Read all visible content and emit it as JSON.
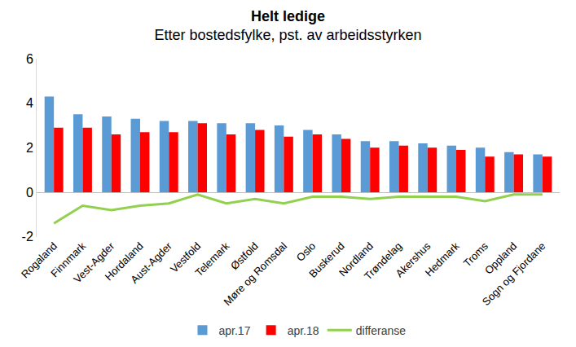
{
  "chart_data": {
    "type": "bar",
    "title": "Helt ledige",
    "subtitle": "Etter bostedsfylke, pst. av arbeidsstyrken",
    "categories": [
      "Rogaland",
      "Finnmark",
      "Vest-Agder",
      "Hordaland",
      "Aust-Agder",
      "Vestfold",
      "Telemark",
      "Østfold",
      "Møre og Romsdal",
      "Oslo",
      "Buskerud",
      "Nordland",
      "Trøndelag",
      "Akershus",
      "Hedmark",
      "Troms",
      "Oppland",
      "Sogn og Fjordane"
    ],
    "series": [
      {
        "name": "apr.17",
        "type": "bar",
        "color": "#5b9bd5",
        "values": [
          4.3,
          3.5,
          3.4,
          3.3,
          3.2,
          3.2,
          3.1,
          3.1,
          3.0,
          2.8,
          2.6,
          2.3,
          2.3,
          2.2,
          2.1,
          2.0,
          1.8,
          1.7
        ]
      },
      {
        "name": "apr.18",
        "type": "bar",
        "color": "#ff0000",
        "values": [
          2.9,
          2.9,
          2.6,
          2.7,
          2.7,
          3.1,
          2.6,
          2.8,
          2.5,
          2.6,
          2.4,
          2.0,
          2.1,
          2.0,
          1.9,
          1.6,
          1.7,
          1.6
        ]
      },
      {
        "name": "differanse",
        "type": "line",
        "color": "#92d050",
        "values": [
          -1.4,
          -0.6,
          -0.8,
          -0.6,
          -0.5,
          -0.1,
          -0.5,
          -0.3,
          -0.5,
          -0.2,
          -0.2,
          -0.3,
          -0.2,
          -0.2,
          -0.2,
          -0.4,
          -0.1,
          -0.1
        ]
      }
    ],
    "ylim": [
      -2,
      6
    ],
    "yticks": [
      -2,
      0,
      2,
      4,
      6
    ],
    "grid": false,
    "legend": "bottom"
  }
}
